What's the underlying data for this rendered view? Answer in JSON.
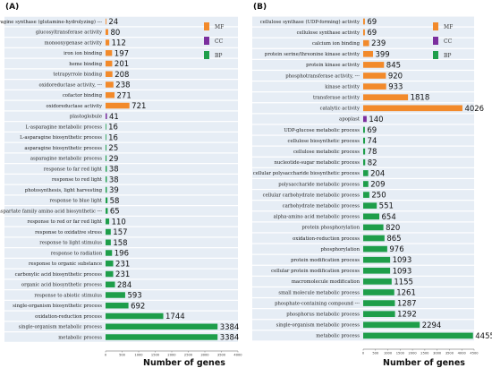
{
  "colors": {
    "MF": "#f28a2b",
    "CC": "#7b2f9e",
    "BP": "#1e9e4a",
    "band": "#e6edf5"
  },
  "chart_data": [
    {
      "type": "bar",
      "panel_label": "(A)",
      "xlabel": "Number of genes",
      "xlim": [
        0,
        4000
      ],
      "xticks": [
        0,
        500,
        1000,
        1500,
        2000,
        2500,
        3000,
        3500,
        4000
      ],
      "legend": [
        "MF",
        "CC",
        "BP"
      ],
      "categories": [
        "asparagine synthase (glutamine-hydrolyzing) ---",
        "glucosyltransferase activity",
        "monooxygenase activity",
        "iron ion binding",
        "heme binding",
        "tetrapyrrole binding",
        "oxidoreductase activity, ---",
        "cofactor binding",
        "oxidoreductase activity",
        "plastoglobule",
        "L-asparagine metabolic process",
        "L-asparagine biosynthetic process",
        "asparagine biosynthetic process",
        "asparagine metabolic process",
        "response to far red light",
        "response to red light",
        "photosynthesis, light harvesting",
        "response to blue light",
        "aspartate family amino acid biosynthetic ---",
        "response to red or far red light",
        "response to oxidative stress",
        "response to light stimulus",
        "response to radiation",
        "response to organic substance",
        "carboxylic acid biosynthetic process",
        "organic acid biosynthetic process",
        "response to abiotic stimulus",
        "single-organism biosynthetic process",
        "oxidation-reduction process",
        "single-organism metabolic process",
        "metabolic process"
      ],
      "values": [
        24,
        80,
        112,
        197,
        201,
        208,
        238,
        271,
        721,
        41,
        16,
        16,
        25,
        29,
        38,
        38,
        39,
        58,
        65,
        110,
        157,
        158,
        196,
        231,
        231,
        284,
        593,
        692,
        1744,
        3384,
        3384
      ],
      "group": [
        "MF",
        "MF",
        "MF",
        "MF",
        "MF",
        "MF",
        "MF",
        "MF",
        "MF",
        "CC",
        "BP",
        "BP",
        "BP",
        "BP",
        "BP",
        "BP",
        "BP",
        "BP",
        "BP",
        "BP",
        "BP",
        "BP",
        "BP",
        "BP",
        "BP",
        "BP",
        "BP",
        "BP",
        "BP",
        "BP",
        "BP"
      ]
    },
    {
      "type": "bar",
      "panel_label": "(B)",
      "xlabel": "Number of genes",
      "xlim": [
        0,
        4500
      ],
      "xticks": [
        0,
        500,
        1000,
        1500,
        2000,
        2500,
        3000,
        3500,
        4000,
        4500
      ],
      "legend": [
        "MF",
        "CC",
        "BP"
      ],
      "categories": [
        "cellulose synthase (UDP-forming) activity",
        "cellulose synthase activity",
        "calcium ion binding",
        "protein serine/threonine kinase activity",
        "protein kinase activity",
        "phosphotransferase activity, ---",
        "kinase activity",
        "transferase activity",
        "catalytic activity",
        "apoplast",
        "UDP-glucose metabolic process",
        "cellulose biosynthetic process",
        "cellulose metabolic process",
        "nucleotide-sugar metabolic process",
        "cellular polysaccharide biosynthetic process",
        "polysaccharide metabolic process",
        "cellular carbohydrate metabolic process",
        "carbohydrate metabolic process",
        "alpha-amino acid metabolic process",
        "protein phosphorylation",
        "oxidation-reduction process",
        "phosphorylation",
        "protein modification process",
        "cellular protein modification process",
        "macromolecule modification",
        "small molecule metabolic process",
        "phosphate-containing compound ---",
        "phosphorus metabolic process",
        "single-organism metabolic process",
        "metabolic process"
      ],
      "values": [
        69,
        69,
        239,
        399,
        845,
        920,
        933,
        1818,
        4026,
        140,
        69,
        74,
        78,
        82,
        204,
        209,
        250,
        551,
        654,
        820,
        865,
        976,
        1093,
        1093,
        1155,
        1261,
        1287,
        1292,
        2294,
        4455
      ],
      "group": [
        "MF",
        "MF",
        "MF",
        "MF",
        "MF",
        "MF",
        "MF",
        "MF",
        "MF",
        "CC",
        "BP",
        "BP",
        "BP",
        "BP",
        "BP",
        "BP",
        "BP",
        "BP",
        "BP",
        "BP",
        "BP",
        "BP",
        "BP",
        "BP",
        "BP",
        "BP",
        "BP",
        "BP",
        "BP",
        "BP"
      ]
    }
  ]
}
